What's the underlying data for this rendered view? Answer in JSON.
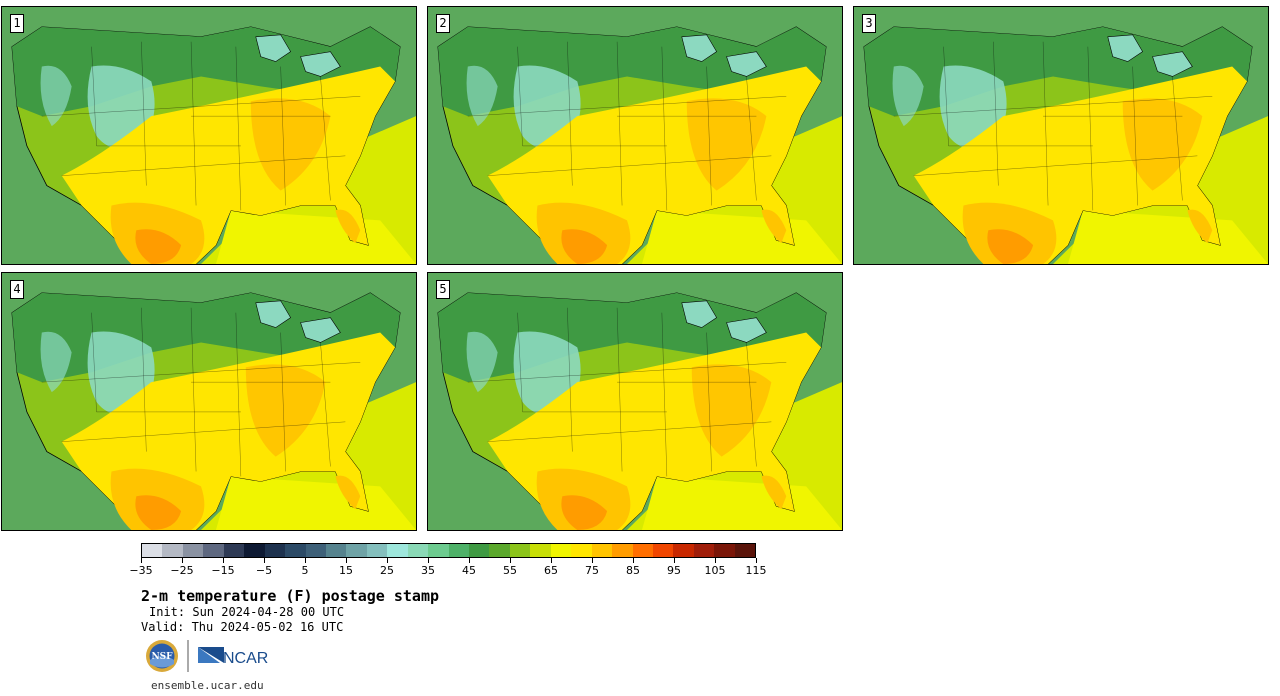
{
  "panels": [
    {
      "label": "1"
    },
    {
      "label": "2"
    },
    {
      "label": "3"
    },
    {
      "label": "4"
    },
    {
      "label": "5"
    }
  ],
  "colorbar": {
    "colors": [
      "#dcdfe6",
      "#b4b9c4",
      "#8a92a2",
      "#5e6880",
      "#2e3a55",
      "#0e1a33",
      "#1e324e",
      "#2c4a66",
      "#3e6078",
      "#56838e",
      "#6fa3a6",
      "#84bfbd",
      "#9ee7dc",
      "#8ad9b6",
      "#6dcb8f",
      "#4eb168",
      "#3f9a43",
      "#5ba82c",
      "#8cc41a",
      "#c8df06",
      "#f0f500",
      "#ffe600",
      "#ffc400",
      "#ff9c00",
      "#ff6e00",
      "#f04600",
      "#c82800",
      "#a01e0a",
      "#7a1608",
      "#5a140a"
    ],
    "tick_labels": [
      "−35",
      "−25",
      "−15",
      "−5",
      "5",
      "15",
      "25",
      "35",
      "45",
      "55",
      "65",
      "75",
      "85",
      "95",
      "105",
      "115"
    ],
    "min": -35,
    "max": 115
  },
  "title": "2-m temperature (F) postage stamp",
  "init": "Init: Sun 2024-04-28 00 UTC",
  "valid": "Valid: Thu 2024-05-02 16 UTC",
  "logos": {
    "nsf": "NSF",
    "ncar": "NCAR"
  },
  "site": "ensemble.ucar.edu",
  "palette": {
    "ocean_pacific": "#5ca95c",
    "ocean_atlantic_south": "#d8ea00",
    "gulf": "#f0f500",
    "mountains_cold": "#8cd9c0",
    "northern_plains": "#3f9a43",
    "great_plains": "#8cc41a",
    "south_warm": "#ffe600",
    "hot": "#ffc400",
    "very_hot": "#ff9c00"
  }
}
